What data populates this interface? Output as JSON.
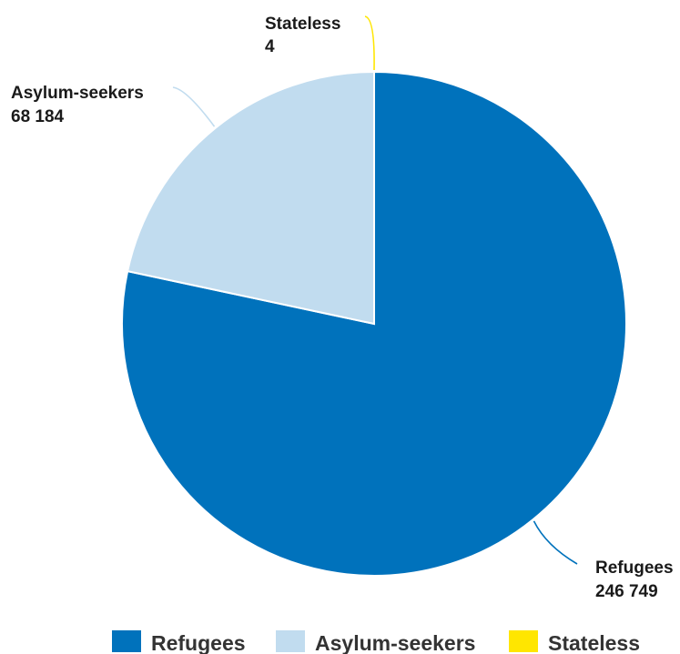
{
  "chart_data": {
    "type": "pie",
    "title": "",
    "slices": [
      {
        "label": "Refugees",
        "value": 246749,
        "value_label": "246 749",
        "color": "#0072bc"
      },
      {
        "label": "Asylum-seekers",
        "value": 68184,
        "value_label": "68 184",
        "color": "#c1dcef"
      },
      {
        "label": "Stateless",
        "value": 4,
        "value_label": "4",
        "color": "#ffe600"
      }
    ],
    "legend_position": "bottom"
  }
}
